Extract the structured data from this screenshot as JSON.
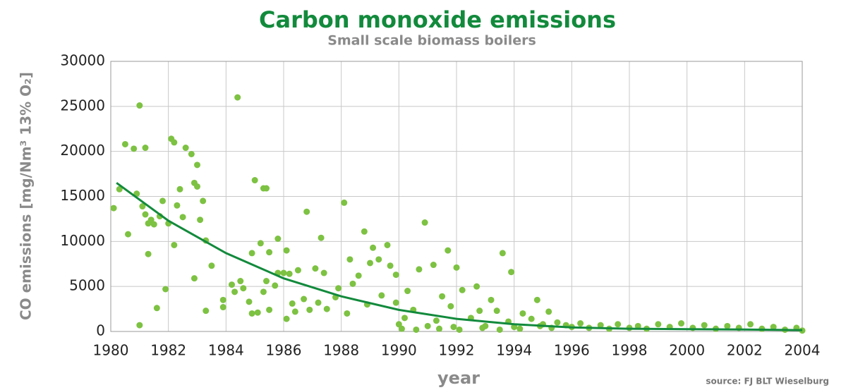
{
  "chart_data": {
    "type": "scatter",
    "title": "Carbon monoxide emissions",
    "subtitle": "Small scale biomass boilers",
    "x_label": "year",
    "y_label": "CO emissions [mg/Nm³ 13% O₂]",
    "source": "source: FJ BLT Wieselburg",
    "xlim": [
      1980,
      2004
    ],
    "ylim": [
      0,
      30000
    ],
    "xticks": [
      1980,
      1982,
      1984,
      1986,
      1988,
      1990,
      1992,
      1994,
      1996,
      1998,
      2000,
      2002,
      2004
    ],
    "yticks": [
      0,
      5000,
      10000,
      15000,
      20000,
      25000,
      30000
    ],
    "grid": true,
    "point_color": "#7dc242",
    "trend_color": "#128a3c",
    "points": {
      "x": [
        1980.1,
        1980.3,
        1980.5,
        1980.6,
        1980.8,
        1980.9,
        1981.0,
        1981.0,
        1981.1,
        1981.2,
        1981.2,
        1981.3,
        1981.3,
        1981.4,
        1981.5,
        1981.6,
        1981.7,
        1981.8,
        1981.9,
        1982.0,
        1982.1,
        1982.2,
        1982.2,
        1982.3,
        1982.4,
        1982.5,
        1982.6,
        1982.8,
        1982.9,
        1982.9,
        1983.0,
        1983.0,
        1983.1,
        1983.2,
        1983.3,
        1983.3,
        1983.5,
        1983.9,
        1983.9,
        1984.2,
        1984.3,
        1984.4,
        1984.5,
        1984.6,
        1984.8,
        1984.9,
        1984.9,
        1985.0,
        1985.1,
        1985.2,
        1985.3,
        1985.3,
        1985.4,
        1985.4,
        1985.5,
        1985.5,
        1985.7,
        1985.8,
        1985.8,
        1986.0,
        1986.1,
        1986.1,
        1986.2,
        1986.3,
        1986.4,
        1986.5,
        1986.7,
        1986.8,
        1986.9,
        1987.1,
        1987.2,
        1987.3,
        1987.4,
        1987.5,
        1987.8,
        1987.9,
        1988.1,
        1988.2,
        1988.3,
        1988.4,
        1988.6,
        1988.8,
        1988.9,
        1989.0,
        1989.1,
        1989.3,
        1989.4,
        1989.6,
        1989.7,
        1989.9,
        1989.9,
        1990.0,
        1990.1,
        1990.2,
        1990.3,
        1990.5,
        1990.6,
        1990.7,
        1990.9,
        1991.0,
        1991.2,
        1991.3,
        1991.4,
        1991.5,
        1991.7,
        1991.8,
        1991.9,
        1992.0,
        1992.1,
        1992.2,
        1992.5,
        1992.7,
        1992.8,
        1992.9,
        1993.0,
        1993.2,
        1993.4,
        1993.5,
        1993.6,
        1993.8,
        1993.9,
        1994.0,
        1994.2,
        1994.3,
        1994.6,
        1994.8,
        1994.9,
        1995.0,
        1995.2,
        1995.3,
        1995.5,
        1995.8,
        1996.0,
        1996.3,
        1996.6,
        1997.0,
        1997.3,
        1997.6,
        1998.0,
        1998.3,
        1998.6,
        1999.0,
        1999.4,
        1999.8,
        2000.2,
        2000.6,
        2001.0,
        2001.4,
        2001.8,
        2002.2,
        2002.6,
        2003.0,
        2003.4,
        2003.8,
        2004.0
      ],
      "y": [
        13700,
        15800,
        20800,
        10800,
        20300,
        15300,
        25100,
        700,
        13900,
        20400,
        13000,
        8600,
        12000,
        12400,
        11900,
        2600,
        12800,
        14500,
        4700,
        12000,
        21400,
        21000,
        9600,
        14000,
        15800,
        12700,
        20400,
        19700,
        5900,
        16500,
        18500,
        16100,
        12400,
        14500,
        10100,
        2300,
        7300,
        3500,
        2700,
        5200,
        4400,
        26000,
        5600,
        4800,
        3300,
        8700,
        2000,
        16800,
        2100,
        9800,
        15900,
        4400,
        15900,
        5600,
        8800,
        2400,
        5100,
        10300,
        6500,
        6500,
        9000,
        1400,
        6400,
        3100,
        2200,
        6800,
        3600,
        13300,
        2400,
        7000,
        3200,
        10400,
        6500,
        2500,
        3800,
        4800,
        14300,
        2000,
        8000,
        5300,
        6200,
        11100,
        3000,
        7600,
        9300,
        8000,
        4000,
        9600,
        7300,
        3200,
        6300,
        800,
        300,
        1500,
        4500,
        2400,
        200,
        6900,
        12100,
        600,
        7400,
        1200,
        300,
        3900,
        9000,
        2800,
        500,
        7100,
        200,
        4600,
        1500,
        5000,
        2300,
        400,
        600,
        3500,
        2300,
        200,
        8700,
        1100,
        6600,
        500,
        300,
        2000,
        1400,
        3500,
        600,
        800,
        2200,
        400,
        1000,
        700,
        500,
        900,
        400,
        700,
        300,
        800,
        400,
        600,
        300,
        800,
        500,
        900,
        400,
        700,
        300,
        600,
        400,
        800,
        300,
        500,
        200,
        400,
        100
      ]
    },
    "trend": {
      "x": [
        1980.2,
        1982,
        1984,
        1986,
        1988,
        1990,
        1992,
        1994,
        1996,
        1998,
        2000,
        2002,
        2004
      ],
      "y": [
        16500,
        12300,
        8700,
        5900,
        3900,
        2400,
        1400,
        800,
        450,
        300,
        250,
        220,
        150
      ]
    }
  }
}
